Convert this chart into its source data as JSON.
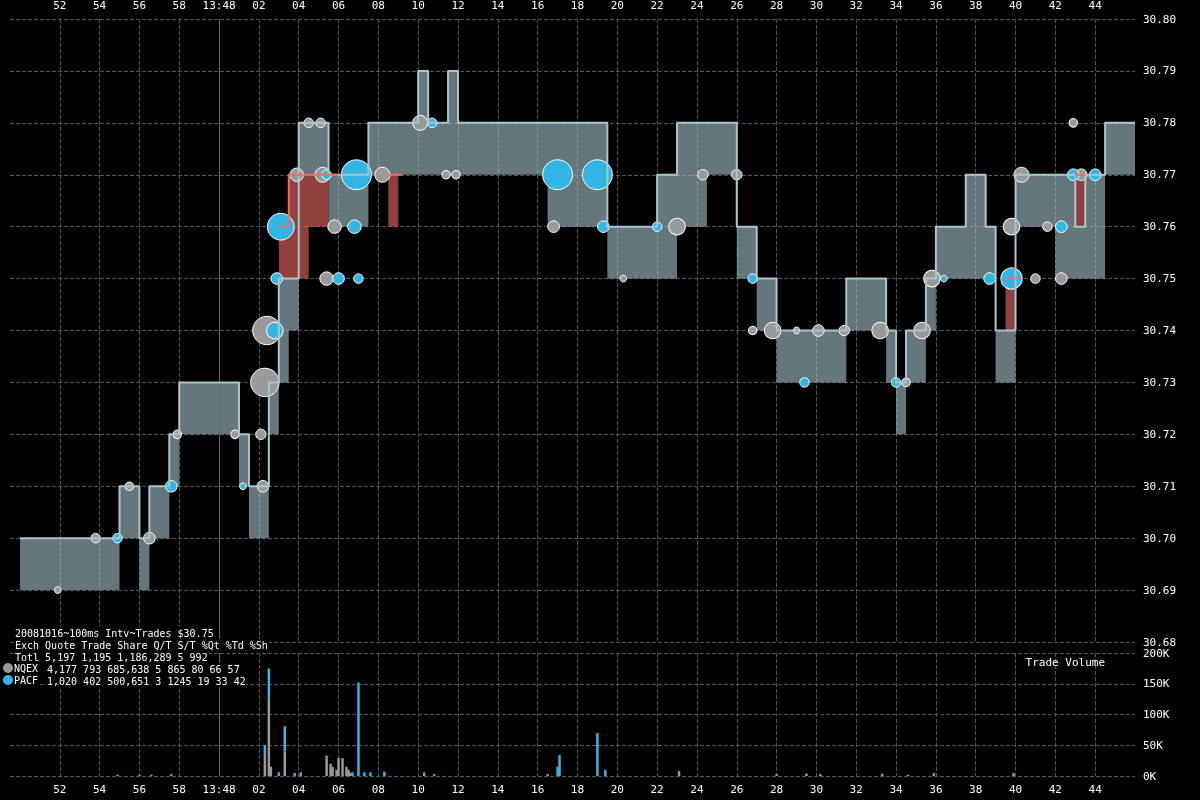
{
  "chart_data": [
    {
      "type": "step",
      "xlim": [
        "2008-10-16T13:47:49.5",
        "2008-10-16T13:48:46"
      ],
      "xticks": [
        {
          "value": "2008-10-16T13:47:52",
          "label": "52"
        },
        {
          "value": "2008-10-16T13:47:54",
          "label": "54"
        },
        {
          "value": "2008-10-16T13:47:56",
          "label": "56"
        },
        {
          "value": "2008-10-16T13:47:58",
          "label": "58"
        },
        {
          "value": "2008-10-16T13:48:00",
          "label": "13:48"
        },
        {
          "value": "2008-10-16T13:48:02",
          "label": "02"
        },
        {
          "value": "2008-10-16T13:48:04",
          "label": "04"
        },
        {
          "value": "2008-10-16T13:48:06",
          "label": "06"
        },
        {
          "value": "2008-10-16T13:48:08",
          "label": "08"
        },
        {
          "value": "2008-10-16T13:48:10",
          "label": "10"
        },
        {
          "value": "2008-10-16T13:48:12",
          "label": "12"
        },
        {
          "value": "2008-10-16T13:48:14",
          "label": "14"
        },
        {
          "value": "2008-10-16T13:48:16",
          "label": "16"
        },
        {
          "value": "2008-10-16T13:48:18",
          "label": "18"
        },
        {
          "value": "2008-10-16T13:48:20",
          "label": "20"
        },
        {
          "value": "2008-10-16T13:48:22",
          "label": "22"
        },
        {
          "value": "2008-10-16T13:48:24",
          "label": "24"
        },
        {
          "value": "2008-10-16T13:48:26",
          "label": "26"
        },
        {
          "value": "2008-10-16T13:48:28",
          "label": "28"
        },
        {
          "value": "2008-10-16T13:48:30",
          "label": "30"
        },
        {
          "value": "2008-10-16T13:48:32",
          "label": "32"
        },
        {
          "value": "2008-10-16T13:48:34",
          "label": "34"
        },
        {
          "value": "2008-10-16T13:48:36",
          "label": "36"
        },
        {
          "value": "2008-10-16T13:48:38",
          "label": "38"
        },
        {
          "value": "2008-10-16T13:48:40",
          "label": "40"
        },
        {
          "value": "2008-10-16T13:48:42",
          "label": "42"
        },
        {
          "value": "2008-10-16T13:48:44",
          "label": "44"
        }
      ],
      "ylim": [
        30.68,
        30.8
      ],
      "yticks": [
        30.68,
        30.69,
        {
          "value": 30.7,
          "label": "30.70"
        },
        30.71,
        30.72,
        30.73,
        30.74,
        30.75,
        30.76,
        30.77,
        30.78,
        30.79,
        {
          "value": 30.8,
          "label": "30.80"
        }
      ],
      "grid": true,
      "ref_lines": [
        {
          "axis": "x",
          "value": "2008-10-16T13:48:00",
          "color": "#666666"
        }
      ],
      "series": [
        {
          "color": "#a9c6ce",
          "x": [
            "2008-10-16T13:47:50",
            "2008-10-16T13:47:55",
            "2008-10-16T13:47:56",
            "2008-10-16T13:47:56.5",
            "2008-10-16T13:47:57.5",
            "2008-10-16T13:47:58",
            "2008-10-16T13:48:01",
            "2008-10-16T13:48:01.5",
            "2008-10-16T13:48:02.5",
            "2008-10-16T13:48:03",
            "2008-10-16T13:48:03.5",
            "2008-10-16T13:48:04",
            "2008-10-16T13:48:05.5",
            "2008-10-16T13:48:07.5",
            "2008-10-16T13:48:10",
            "2008-10-16T13:48:10.5",
            "2008-10-16T13:48:11.5",
            "2008-10-16T13:48:12",
            "2008-10-16T13:48:16.5",
            "2008-10-16T13:48:19.5",
            "2008-10-16T13:48:22",
            "2008-10-16T13:48:23",
            "2008-10-16T13:48:24.5",
            "2008-10-16T13:48:26",
            "2008-10-16T13:48:27",
            "2008-10-16T13:48:28",
            "2008-10-16T13:48:31.5",
            "2008-10-16T13:48:33.5",
            "2008-10-16T13:48:34",
            "2008-10-16T13:48:34.5",
            "2008-10-16T13:48:35.5",
            "2008-10-16T13:48:36",
            "2008-10-16T13:48:37.5",
            "2008-10-16T13:48:38.5",
            "2008-10-16T13:48:39",
            "2008-10-16T13:48:40",
            "2008-10-16T13:48:42",
            "2008-10-16T13:48:43",
            "2008-10-16T13:48:43.5",
            "2008-10-16T13:48:44.5",
            "2008-10-16T13:48:46"
          ],
          "values": [
            30.7,
            30.71,
            30.7,
            30.71,
            30.72,
            30.73,
            30.72,
            30.71,
            30.73,
            30.75,
            30.75,
            30.78,
            30.77,
            30.78,
            30.79,
            30.78,
            30.79,
            30.78,
            30.78,
            30.76,
            30.77,
            30.78,
            30.78,
            30.76,
            30.75,
            30.74,
            30.75,
            30.74,
            30.73,
            30.74,
            30.75,
            30.76,
            30.77,
            30.76,
            30.74,
            30.77,
            30.77,
            30.76,
            30.77,
            30.78,
            30.78
          ],
          "lower": [
            30.69,
            30.7,
            30.69,
            30.7,
            30.71,
            30.72,
            30.71,
            30.7,
            30.72,
            30.73,
            30.74,
            30.77,
            30.76,
            30.77,
            30.77,
            30.77,
            30.77,
            30.77,
            30.76,
            30.75,
            30.75,
            30.76,
            30.77,
            30.75,
            30.74,
            30.73,
            30.74,
            30.73,
            30.72,
            30.73,
            30.74,
            30.75,
            30.75,
            30.75,
            30.73,
            30.76,
            30.75,
            30.75,
            30.75,
            30.77,
            30.77
          ],
          "upper": [
            30.7,
            30.71,
            30.7,
            30.71,
            30.72,
            30.73,
            30.72,
            30.71,
            30.73,
            30.75,
            30.75,
            30.78,
            30.77,
            30.78,
            30.79,
            30.78,
            30.79,
            30.78,
            30.78,
            30.76,
            30.77,
            30.78,
            30.78,
            30.76,
            30.75,
            30.74,
            30.75,
            30.74,
            30.73,
            30.74,
            30.75,
            30.76,
            30.77,
            30.76,
            30.74,
            30.77,
            30.77,
            30.76,
            30.77,
            30.78,
            30.78
          ]
        },
        {
          "color": "#f26b64",
          "x": [
            "2008-10-16T13:48:03",
            "2008-10-16T13:48:03.5",
            "2008-10-16T13:48:04.5",
            "2008-10-16T13:48:05.5",
            "2008-10-16T13:48:06",
            "2008-10-16T13:48:08.5",
            "2008-10-16T13:48:09",
            "2008-10-16T13:48:09.2",
            "2008-10-16T13:48:39.5",
            "2008-10-16T13:48:40",
            "2008-10-16T13:48:40.2",
            "2008-10-16T13:48:43",
            "2008-10-16T13:48:43.5"
          ],
          "values": [
            30.76,
            30.77,
            30.77,
            30.77,
            null,
            30.77,
            30.77,
            null,
            30.75,
            30.75,
            null,
            30.77,
            30.77
          ],
          "lower": [
            30.75,
            30.75,
            30.76,
            30.76,
            null,
            30.76,
            30.76,
            null,
            30.74,
            30.74,
            null,
            30.76,
            30.76
          ],
          "upper": [
            30.76,
            30.77,
            30.77,
            30.77,
            null,
            30.77,
            30.77,
            null,
            30.75,
            30.75,
            null,
            30.77,
            30.77
          ]
        },
        {
          "type": "bubble",
          "color": "#9a9a9a",
          "x": [
            "2008-10-16T13:47:51.9",
            "2008-10-16T13:47:53.8",
            "2008-10-16T13:47:56.5",
            "2008-10-16T13:47:55.5",
            "2008-10-16T13:47:57.9",
            "2008-10-16T13:48:00.8",
            "2008-10-16T13:48:02.3",
            "2008-10-16T13:48:02.4",
            "2008-10-16T13:48:02.2",
            "2008-10-16T13:48:02.1",
            "2008-10-16T13:48:03.9",
            "2008-10-16T13:48:04.5",
            "2008-10-16T13:48:05.1",
            "2008-10-16T13:48:05.2",
            "2008-10-16T13:48:05.4",
            "2008-10-16T13:48:05.8",
            "2008-10-16T13:48:08.2",
            "2008-10-16T13:48:10.1",
            "2008-10-16T13:48:11.4",
            "2008-10-16T13:48:11.9",
            "2008-10-16T13:48:16.8",
            "2008-10-16T13:48:20.3",
            "2008-10-16T13:48:23",
            "2008-10-16T13:48:24.3",
            "2008-10-16T13:48:26",
            "2008-10-16T13:48:26.8",
            "2008-10-16T13:48:27.8",
            "2008-10-16T13:48:29",
            "2008-10-16T13:48:30.1",
            "2008-10-16T13:48:31.4",
            "2008-10-16T13:48:33.2",
            "2008-10-16T13:48:34.5",
            "2008-10-16T13:48:35.3",
            "2008-10-16T13:48:35.8",
            "2008-10-16T13:48:39.8",
            "2008-10-16T13:48:40.3",
            "2008-10-16T13:48:41",
            "2008-10-16T13:48:41.6",
            "2008-10-16T13:48:43.3",
            "2008-10-16T13:48:42.9",
            "2008-10-16T13:48:42.3"
          ],
          "values": [
            30.69,
            30.7,
            30.7,
            30.71,
            30.72,
            30.72,
            30.73,
            30.74,
            30.71,
            30.72,
            30.77,
            30.78,
            30.78,
            30.77,
            30.75,
            30.76,
            30.77,
            30.78,
            30.77,
            30.77,
            30.76,
            30.75,
            30.76,
            30.77,
            30.77,
            30.74,
            30.74,
            30.74,
            30.74,
            30.74,
            30.74,
            30.73,
            30.74,
            30.75,
            30.76,
            30.77,
            30.75,
            30.76,
            30.77,
            30.78,
            30.75
          ],
          "sizes": [
            0.05,
            0.1,
            0.15,
            0.08,
            0.08,
            0.08,
            0.9,
            0.9,
            0.15,
            0.12,
            0.2,
            0.1,
            0.1,
            0.25,
            0.2,
            0.2,
            0.25,
            0.25,
            0.08,
            0.08,
            0.15,
            0.05,
            0.3,
            0.12,
            0.12,
            0.08,
            0.3,
            0.05,
            0.15,
            0.12,
            0.3,
            0.08,
            0.3,
            0.3,
            0.3,
            0.25,
            0.1,
            0.1,
            0.15,
            0.08,
            0.15
          ]
        },
        {
          "type": "bubble",
          "color": "#33b5e5",
          "x": [
            "2008-10-16T13:47:54.9",
            "2008-10-16T13:47:57.6",
            "2008-10-16T13:48:01.2",
            "2008-10-16T13:48:02.8",
            "2008-10-16T13:48:02.9",
            "2008-10-16T13:48:03.1",
            "2008-10-16T13:48:05.4",
            "2008-10-16T13:48:06.9",
            "2008-10-16T13:48:06.8",
            "2008-10-16T13:48:06",
            "2008-10-16T13:48:07",
            "2008-10-16T13:48:10.7",
            "2008-10-16T13:48:17",
            "2008-10-16T13:48:19",
            "2008-10-16T13:48:19.3",
            "2008-10-16T13:48:22",
            "2008-10-16T13:48:26.8",
            "2008-10-16T13:48:29.4",
            "2008-10-16T13:48:34",
            "2008-10-16T13:48:36.4",
            "2008-10-16T13:48:38.7",
            "2008-10-16T13:48:39.8",
            "2008-10-16T13:48:42.3",
            "2008-10-16T13:48:42.9",
            "2008-10-16T13:48:44"
          ],
          "values": [
            30.7,
            30.71,
            30.71,
            30.74,
            30.75,
            30.76,
            30.77,
            30.77,
            30.76,
            30.75,
            30.75,
            30.78,
            30.77,
            30.77,
            30.76,
            30.76,
            30.75,
            30.73,
            30.73,
            30.75,
            30.75,
            30.75,
            30.76,
            30.77,
            30.77
          ],
          "sizes": [
            0.1,
            0.15,
            0.05,
            0.3,
            0.15,
            0.8,
            0.1,
            1,
            0.2,
            0.15,
            0.1,
            0.1,
            1,
            1,
            0.15,
            0.1,
            0.1,
            0.1,
            0.1,
            0.05,
            0.15,
            0.5,
            0.15,
            0.15,
            0.15
          ]
        }
      ]
    },
    {
      "type": "bar",
      "stacked": true,
      "title": "Trade Volume",
      "legend": "top left",
      "annotations": [
        "20081016~100ms Intv~Trades $30.75",
        "Exch Quote Trade Share Q/T S/T %Qt %Td %Sh",
        "Totl 5,197 1,195 1,186,289 5 992",
        "4,177 793 685,638 5 865 80 66 57",
        "1,020 402 500,651 3 1245 19 33 42"
      ],
      "xlim": [
        "2008-10-16T13:47:49.5",
        "2008-10-16T13:48:46"
      ],
      "xticks": [
        {
          "value": "2008-10-16T13:47:52",
          "label": "52"
        },
        {
          "value": "2008-10-16T13:47:54",
          "label": "54"
        },
        {
          "value": "2008-10-16T13:47:56",
          "label": "56"
        },
        {
          "value": "2008-10-16T13:47:58",
          "label": "58"
        },
        {
          "value": "2008-10-16T13:48:00",
          "label": "13:48"
        },
        {
          "value": "2008-10-16T13:48:02",
          "label": "02"
        },
        {
          "value": "2008-10-16T13:48:04",
          "label": "04"
        },
        {
          "value": "2008-10-16T13:48:06",
          "label": "06"
        },
        {
          "value": "2008-10-16T13:48:08",
          "label": "08"
        },
        {
          "value": "2008-10-16T13:48:10",
          "label": "10"
        },
        {
          "value": "2008-10-16T13:48:12",
          "label": "12"
        },
        {
          "value": "2008-10-16T13:48:14",
          "label": "14"
        },
        {
          "value": "2008-10-16T13:48:16",
          "label": "16"
        },
        {
          "value": "2008-10-16T13:48:18",
          "label": "18"
        },
        {
          "value": "2008-10-16T13:48:20",
          "label": "20"
        },
        {
          "value": "2008-10-16T13:48:22",
          "label": "22"
        },
        {
          "value": "2008-10-16T13:48:24",
          "label": "24"
        },
        {
          "value": "2008-10-16T13:48:26",
          "label": "26"
        },
        {
          "value": "2008-10-16T13:48:28",
          "label": "28"
        },
        {
          "value": "2008-10-16T13:48:30",
          "label": "30"
        },
        {
          "value": "2008-10-16T13:48:32",
          "label": "32"
        },
        {
          "value": "2008-10-16T13:48:34",
          "label": "34"
        },
        {
          "value": "2008-10-16T13:48:36",
          "label": "36"
        },
        {
          "value": "2008-10-16T13:48:38",
          "label": "38"
        },
        {
          "value": "2008-10-16T13:48:40",
          "label": "40"
        },
        {
          "value": "2008-10-16T13:48:42",
          "label": "42"
        },
        {
          "value": "2008-10-16T13:48:44",
          "label": "44"
        }
      ],
      "ylim": [
        0,
        200000
      ],
      "yticks": [
        {
          "value": 0,
          "label": "0K"
        },
        {
          "value": 50000,
          "label": "50K"
        },
        {
          "value": 100000,
          "label": "100K"
        },
        {
          "value": 150000,
          "label": "150K"
        },
        {
          "value": 200000,
          "label": "200K"
        }
      ],
      "grid": true,
      "ref_lines": [
        {
          "axis": "x",
          "value": "2008-10-16T13:48:00",
          "color": "#666666"
        }
      ],
      "x": [
        "2008-10-16T13:47:54.9",
        "2008-10-16T13:47:56",
        "2008-10-16T13:47:56.6",
        "2008-10-16T13:47:57.6",
        "2008-10-16T13:48:02.3",
        "2008-10-16T13:48:02.5",
        "2008-10-16T13:48:02.6",
        "2008-10-16T13:48:03",
        "2008-10-16T13:48:03.3",
        "2008-10-16T13:48:03.8",
        "2008-10-16T13:48:04.1",
        "2008-10-16T13:48:05.4",
        "2008-10-16T13:48:05.6",
        "2008-10-16T13:48:05.7",
        "2008-10-16T13:48:05.9",
        "2008-10-16T13:48:06",
        "2008-10-16T13:48:06.2",
        "2008-10-16T13:48:06.4",
        "2008-10-16T13:48:06.5",
        "2008-10-16T13:48:06.6",
        "2008-10-16T13:48:06.7",
        "2008-10-16T13:48:07",
        "2008-10-16T13:48:07.3",
        "2008-10-16T13:48:07.6",
        "2008-10-16T13:48:08.3",
        "2008-10-16T13:48:10.3",
        "2008-10-16T13:48:10.8",
        "2008-10-16T13:48:16.5",
        "2008-10-16T13:48:17",
        "2008-10-16T13:48:17.1",
        "2008-10-16T13:48:19",
        "2008-10-16T13:48:19.4",
        "2008-10-16T13:48:23.1",
        "2008-10-16T13:48:28",
        "2008-10-16T13:48:29.5",
        "2008-10-16T13:48:30.2",
        "2008-10-16T13:48:33.3",
        "2008-10-16T13:48:34.6",
        "2008-10-16T13:48:35.9",
        "2008-10-16T13:48:39.9"
      ],
      "series": [
        {
          "name": "NQEX",
          "color": "#9a9a9a",
          "values": [
            null,
            null,
            2000,
            3000,
            34000,
            125000,
            15000,
            null,
            40000,
            null,
            6000,
            29000,
            20000,
            15000,
            10000,
            29000,
            29000,
            15000,
            10000,
            5000,
            null,
            null,
            null,
            null,
            null,
            6000,
            null,
            3000,
            null,
            3000,
            null,
            null,
            8000,
            3000,
            4000,
            3000,
            null,
            2000,
            3000,
            3000
          ]
        },
        {
          "name": "PACF",
          "color": "#33b5e5",
          "values": [
            2000,
            2000,
            null,
            null,
            16000,
            50000,
            null,
            6000,
            41000,
            5000,
            null,
            4000,
            null,
            null,
            null,
            null,
            null,
            null,
            null,
            null,
            6000,
            152000,
            6000,
            6000,
            7000,
            null,
            3000,
            null,
            15000,
            31000,
            70000,
            10000,
            null,
            null,
            null,
            null,
            4000,
            null,
            2000,
            2000
          ]
        }
      ]
    }
  ]
}
